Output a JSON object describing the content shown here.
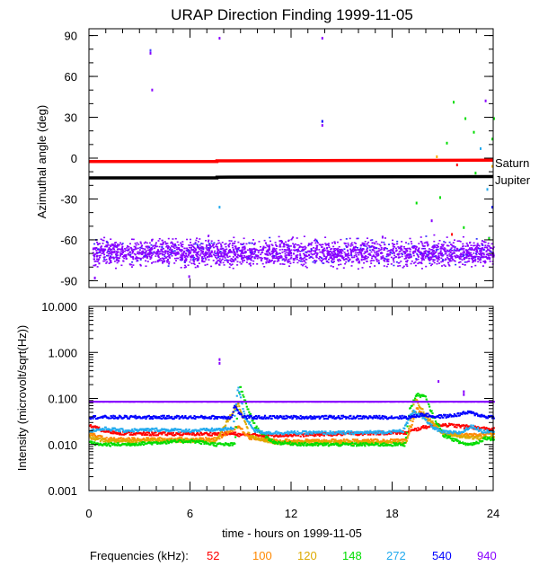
{
  "chart_data": [
    {
      "type": "scatter",
      "title": "URAP Direction Finding  1999-11-05",
      "ylabel": "Azimuthal angle (deg)",
      "xlabel": "",
      "xlim": [
        0,
        24
      ],
      "ylim": [
        -95,
        95
      ],
      "yticks": [
        "90",
        "60",
        "30",
        "0",
        "-30",
        "-60",
        "-90"
      ],
      "xticks": [
        "0",
        "6",
        "12",
        "18",
        "24"
      ],
      "series": [
        {
          "name": "Saturn",
          "color": "#ff0000",
          "x": [
            0,
            7.6,
            7.6,
            24
          ],
          "y": [
            -2.5,
            -2.5,
            -2.0,
            -1.5
          ]
        },
        {
          "name": "Jupiter",
          "color": "#000000",
          "x": [
            0,
            7.6,
            7.6,
            24
          ],
          "y": [
            -14.5,
            -14.5,
            -14.0,
            -13.5
          ]
        },
        {
          "name": "940 kHz azimuth band",
          "color": "#8800ff",
          "x_range": [
            0.2,
            24
          ],
          "y_center": -69,
          "y_spread": 8
        }
      ],
      "annotations": [
        "Saturn",
        "Jupiter"
      ],
      "scattered_points": [
        {
          "x": 3.6,
          "y": 80,
          "color": "#4444ff"
        },
        {
          "x": 3.6,
          "y": 78,
          "color": "#8800ff"
        },
        {
          "x": 3.7,
          "y": 51,
          "color": "#8800ff"
        },
        {
          "x": 7.7,
          "y": 89,
          "color": "#8800ff"
        },
        {
          "x": 13.8,
          "y": 89,
          "color": "#8800ff"
        },
        {
          "x": 13.8,
          "y": 28,
          "color": "#0000ff"
        },
        {
          "x": 13.8,
          "y": 25,
          "color": "#8800ff"
        },
        {
          "x": 7.7,
          "y": -35,
          "color": "#22aaee"
        },
        {
          "x": 20.3,
          "y": -45,
          "color": "#8800ff"
        },
        {
          "x": 21.5,
          "y": -55,
          "color": "#ff0000"
        },
        {
          "x": 22.2,
          "y": -50,
          "color": "#00dd00"
        },
        {
          "x": 23.5,
          "y": 43,
          "color": "#8800ff"
        },
        {
          "x": 21.6,
          "y": 42,
          "color": "#00dd00"
        },
        {
          "x": 22.3,
          "y": 30,
          "color": "#00dd00"
        },
        {
          "x": 22.8,
          "y": 20,
          "color": "#00dd00"
        },
        {
          "x": 21.2,
          "y": 12,
          "color": "#00dd00"
        },
        {
          "x": 23.2,
          "y": 8,
          "color": "#22aaee"
        },
        {
          "x": 20.6,
          "y": 2,
          "color": "#ffaa00"
        },
        {
          "x": 21.8,
          "y": -4,
          "color": "#ff0000"
        },
        {
          "x": 22.9,
          "y": -10,
          "color": "#00dd00"
        },
        {
          "x": 23.6,
          "y": -22,
          "color": "#22aaee"
        },
        {
          "x": 19.4,
          "y": -32,
          "color": "#00dd00"
        },
        {
          "x": 20.8,
          "y": -28,
          "color": "#00dd00"
        },
        {
          "x": 23.9,
          "y": -35,
          "color": "#0000ff"
        },
        {
          "x": 23.7,
          "y": -58,
          "color": "#00dd00"
        },
        {
          "x": 24.0,
          "y": 30,
          "color": "#00dd00"
        },
        {
          "x": 23.9,
          "y": 15,
          "color": "#00dd00"
        },
        {
          "x": 23.9,
          "y": -5,
          "color": "#ffaa00"
        },
        {
          "x": 0.3,
          "y": -87,
          "color": "#8800ff"
        },
        {
          "x": 5.9,
          "y": -86,
          "color": "#8800ff"
        }
      ]
    },
    {
      "type": "line",
      "ylabel": "Intensity (microvolt/sqrt(Hz))",
      "xlabel": "time - hours on 1999-11-05",
      "xlim": [
        0,
        24
      ],
      "ylim": [
        0.001,
        10
      ],
      "yscale": "log",
      "yticks": [
        "10.000",
        "1.000",
        "0.100",
        "0.010",
        "0.001"
      ],
      "xticks": [
        "0",
        "6",
        "12",
        "18",
        "24"
      ],
      "series": [
        {
          "name": "52",
          "color": "#ff0000",
          "x": [
            0,
            0.8,
            1.5,
            3,
            6,
            8.6,
            9.0,
            10,
            12,
            15,
            18,
            18.8,
            19.5,
            20.3,
            21,
            22,
            23,
            24
          ],
          "y": [
            0.026,
            0.02,
            0.018,
            0.017,
            0.017,
            0.017,
            0.016,
            0.016,
            0.016,
            0.017,
            0.018,
            0.018,
            0.022,
            0.026,
            0.027,
            0.025,
            0.023,
            0.021
          ]
        },
        {
          "name": "100",
          "color": "#ff8800",
          "x": [
            0,
            1,
            4,
            7.5,
            8.8,
            9.5,
            11,
            13,
            15,
            18,
            18.8,
            19.4,
            20,
            21,
            22,
            23,
            24
          ],
          "y": [
            0.017,
            0.013,
            0.013,
            0.013,
            0.025,
            0.014,
            0.012,
            0.012,
            0.012,
            0.012,
            0.012,
            0.06,
            0.035,
            0.018,
            0.016,
            0.016,
            0.018
          ]
        },
        {
          "name": "120",
          "color": "#ddaa00",
          "x": [
            0,
            1,
            4,
            7.5,
            8.8,
            9.5,
            11,
            13,
            15,
            18,
            18.8,
            19.3,
            20,
            21,
            22,
            23,
            24
          ],
          "y": [
            0.014,
            0.012,
            0.012,
            0.012,
            0.08,
            0.015,
            0.011,
            0.011,
            0.011,
            0.011,
            0.011,
            0.1,
            0.04,
            0.017,
            0.015,
            0.014,
            0.015
          ]
        },
        {
          "name": "148",
          "color": "#00dd00",
          "x": [
            0,
            0.5,
            2,
            4,
            6,
            7.5,
            8.2,
            8.6,
            8.9,
            9.3,
            9.8,
            10.5,
            11,
            13,
            15,
            18,
            18.7,
            19,
            19.4,
            19.9,
            20.4,
            21,
            22,
            22.5,
            23,
            23.5,
            24
          ],
          "y": [
            0.011,
            0.01,
            0.01,
            0.011,
            0.012,
            0.01,
            0.01,
            0.01,
            0.19,
            0.07,
            0.025,
            0.014,
            0.011,
            0.01,
            0.01,
            0.01,
            0.01,
            0.06,
            0.12,
            0.11,
            0.04,
            0.016,
            0.011,
            0.01,
            0.011,
            0.014,
            0.013
          ]
        },
        {
          "name": "272",
          "color": "#22aaee",
          "x": [
            0,
            1,
            2,
            4,
            6,
            7.5,
            8.5,
            8.8,
            9.2,
            9.8,
            10.5,
            12,
            14,
            16,
            18,
            18.6,
            19.2,
            19.7,
            20.3,
            20.8,
            21.5,
            22,
            22.7,
            23.3,
            24
          ],
          "y": [
            0.02,
            0.022,
            0.02,
            0.021,
            0.02,
            0.021,
            0.022,
            0.18,
            0.04,
            0.02,
            0.018,
            0.018,
            0.018,
            0.018,
            0.019,
            0.02,
            0.055,
            0.04,
            0.025,
            0.019,
            0.018,
            0.018,
            0.025,
            0.019,
            0.02
          ]
        },
        {
          "name": "540",
          "color": "#0000ff",
          "x": [
            0,
            2,
            4,
            6,
            8.4,
            8.6,
            8.9,
            9.2,
            12,
            15,
            18,
            19,
            19.8,
            20.5,
            21.5,
            22.5,
            23.5,
            24
          ],
          "y": [
            0.039,
            0.039,
            0.039,
            0.039,
            0.039,
            0.07,
            0.045,
            0.039,
            0.039,
            0.039,
            0.039,
            0.039,
            0.045,
            0.04,
            0.042,
            0.05,
            0.04,
            0.04
          ]
        },
        {
          "name": "940",
          "color": "#8800ff",
          "x": [
            0,
            6,
            12,
            18,
            24
          ],
          "y": [
            0.085,
            0.085,
            0.085,
            0.085,
            0.085
          ]
        }
      ],
      "scattered_points": [
        {
          "x": 7.7,
          "y": 0.75,
          "color": "#8800ff"
        },
        {
          "x": 7.7,
          "y": 0.62,
          "color": "#8800ff"
        },
        {
          "x": 20.7,
          "y": 0.25,
          "color": "#8800ff"
        },
        {
          "x": 22.2,
          "y": 0.15,
          "color": "#8800ff"
        },
        {
          "x": 22.2,
          "y": 0.13,
          "color": "#8800ff"
        }
      ]
    }
  ],
  "legend": {
    "label": "Frequencies (kHz):",
    "items": [
      {
        "text": "52",
        "color": "#ff0000"
      },
      {
        "text": "100",
        "color": "#ff8800"
      },
      {
        "text": "120",
        "color": "#ddaa00"
      },
      {
        "text": "148",
        "color": "#00dd00"
      },
      {
        "text": "272",
        "color": "#22aaee"
      },
      {
        "text": "540",
        "color": "#0000ff"
      },
      {
        "text": "940",
        "color": "#8800ff"
      }
    ]
  }
}
